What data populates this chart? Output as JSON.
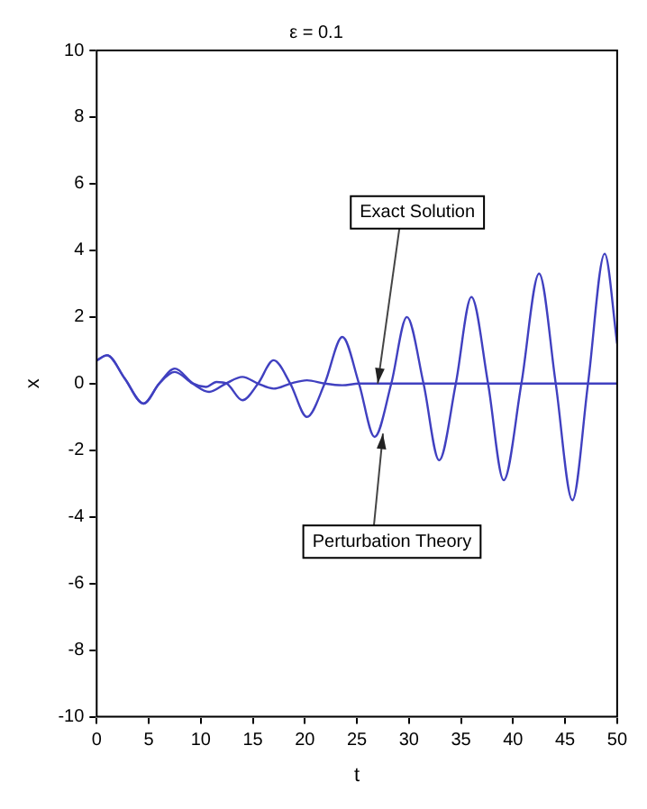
{
  "chart_data": {
    "type": "line",
    "title": "ε = 0.1",
    "xlabel": "t",
    "ylabel": "x",
    "xlim": [
      0,
      50
    ],
    "xticks": [
      0,
      5,
      10,
      15,
      20,
      25,
      30,
      35,
      40,
      45,
      50
    ],
    "ylim": [
      -10,
      10
    ],
    "yticks": [
      -10,
      -8,
      -6,
      -4,
      -2,
      0,
      2,
      4,
      6,
      8,
      10
    ],
    "grid": false,
    "legend": false,
    "marker": "none",
    "line_style": "solid",
    "series": [
      {
        "color": "#4040c0",
        "x": [
          0,
          1,
          2.7,
          4.5,
          6,
          7.5,
          9.2,
          10.8,
          12.4,
          14,
          15.5,
          17,
          18.6,
          20.2,
          21.9,
          23.6,
          25.2,
          30,
          35,
          40,
          45,
          50
        ],
        "values": [
          0.7,
          0.85,
          0.15,
          -0.6,
          0,
          0.35,
          0,
          -0.25,
          0,
          0.2,
          0,
          -0.15,
          0,
          0.1,
          0,
          -0.05,
          0,
          0,
          0,
          0,
          0,
          0
        ]
      },
      {
        "color": "#4040c0",
        "x": [
          0,
          1,
          2.7,
          4.5,
          6,
          7.5,
          9.3,
          10.5,
          11.5,
          12.5,
          14,
          15.5,
          17,
          18.6,
          20.2,
          21.9,
          23.6,
          25.2,
          26.7,
          28.3,
          29.8,
          31.4,
          32.9,
          34.5,
          36,
          37.6,
          39.1,
          40.8,
          42.5,
          44.1,
          45.7,
          47.2,
          48.8,
          50
        ],
        "values": [
          0.7,
          0.85,
          0.15,
          -0.6,
          0,
          0.45,
          0,
          -0.1,
          0.05,
          0,
          -0.5,
          0,
          0.7,
          0,
          -1.0,
          0,
          1.4,
          0,
          -1.6,
          0,
          2.0,
          0,
          -2.3,
          0,
          2.6,
          0,
          -2.9,
          0,
          3.3,
          0,
          -3.5,
          0,
          3.9,
          1.2
        ]
      }
    ],
    "annotations": [
      {
        "text": "Exact Solution",
        "x": 27,
        "y": 0
      },
      {
        "text": "Perturbation Theory",
        "x": 27.5,
        "y": -1.5
      }
    ]
  }
}
